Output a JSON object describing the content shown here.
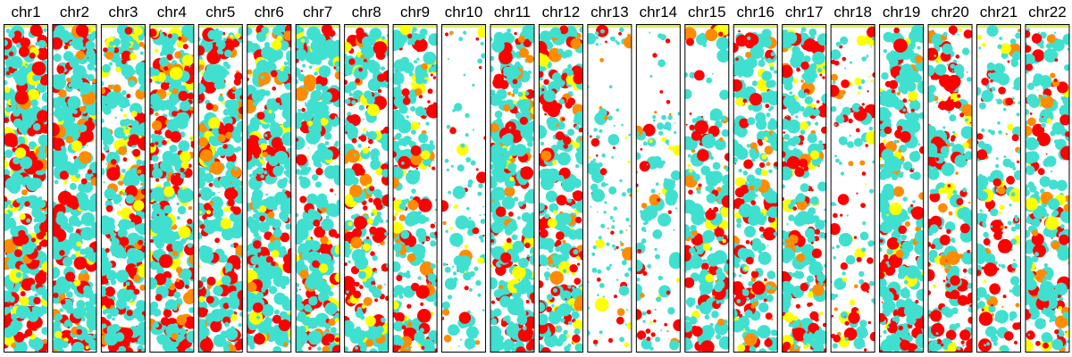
{
  "chart_data": {
    "type": "scatter",
    "title": "",
    "xlabel": "",
    "ylabel": "",
    "grid": false,
    "legend": "none",
    "colors": {
      "high": "#ff0000",
      "mid": "#ff8c00",
      "low": "#ffff00",
      "base": "#40e0d0",
      "header_strip": "#d7f25a",
      "panel_border": "#000000"
    },
    "panels": [
      {
        "label": "chr1",
        "density": 0.95,
        "hot_fraction": 0.45,
        "gap_band": [
          0.49,
          0.52
        ]
      },
      {
        "label": "chr2",
        "density": 0.92,
        "hot_fraction": 0.35,
        "gap_band": [
          0.49,
          0.52
        ]
      },
      {
        "label": "chr3",
        "density": 0.88,
        "hot_fraction": 0.38,
        "gap_band": [
          0.48,
          0.5
        ]
      },
      {
        "label": "chr4",
        "density": 0.85,
        "hot_fraction": 0.5,
        "gap_band": [
          0.47,
          0.49
        ]
      },
      {
        "label": "chr5",
        "density": 0.88,
        "hot_fraction": 0.45,
        "gap_band": [
          0.48,
          0.5
        ]
      },
      {
        "label": "chr6",
        "density": 0.92,
        "hot_fraction": 0.3,
        "gap_band": [
          0.48,
          0.51
        ]
      },
      {
        "label": "chr7",
        "density": 0.88,
        "hot_fraction": 0.32,
        "gap_band": [
          0.49,
          0.51
        ]
      },
      {
        "label": "chr8",
        "density": 0.75,
        "hot_fraction": 0.45,
        "gap_band": [
          0.47,
          0.49
        ]
      },
      {
        "label": "chr9",
        "density": 0.7,
        "hot_fraction": 0.42,
        "gap_band": [
          0.45,
          0.52
        ]
      },
      {
        "label": "chr10",
        "density": 0.3,
        "hot_fraction": 0.25,
        "gap_band": [
          0.1,
          0.3
        ]
      },
      {
        "label": "chr11",
        "density": 0.88,
        "hot_fraction": 0.4,
        "gap_band": [
          0.48,
          0.5
        ]
      },
      {
        "label": "chr12",
        "density": 0.8,
        "hot_fraction": 0.4,
        "gap_band": [
          0.48,
          0.51
        ]
      },
      {
        "label": "chr13",
        "density": 0.3,
        "hot_fraction": 0.25,
        "gap_band": [
          0.05,
          0.25
        ]
      },
      {
        "label": "chr14",
        "density": 0.32,
        "hot_fraction": 0.35,
        "gap_band": [
          0.05,
          0.25
        ]
      },
      {
        "label": "chr15",
        "density": 0.72,
        "hot_fraction": 0.35,
        "gap_band": [
          0.05,
          0.25
        ]
      },
      {
        "label": "chr16",
        "density": 0.75,
        "hot_fraction": 0.35,
        "gap_band": [
          0.44,
          0.47
        ]
      },
      {
        "label": "chr17",
        "density": 0.75,
        "hot_fraction": 0.4,
        "gap_band": [
          0.45,
          0.48
        ]
      },
      {
        "label": "chr18",
        "density": 0.3,
        "hot_fraction": 0.45,
        "gap_band": [
          0.45,
          0.5
        ]
      },
      {
        "label": "chr19",
        "density": 0.78,
        "hot_fraction": 0.38,
        "gap_band": [
          0.46,
          0.49
        ]
      },
      {
        "label": "chr20",
        "density": 0.62,
        "hot_fraction": 0.45,
        "gap_band": [
          0.45,
          0.48
        ]
      },
      {
        "label": "chr21",
        "density": 0.5,
        "hot_fraction": 0.4,
        "gap_band": [
          0.25,
          0.3
        ]
      },
      {
        "label": "chr22",
        "density": 0.7,
        "hot_fraction": 0.35,
        "gap_band": [
          0.45,
          0.48
        ]
      }
    ]
  }
}
